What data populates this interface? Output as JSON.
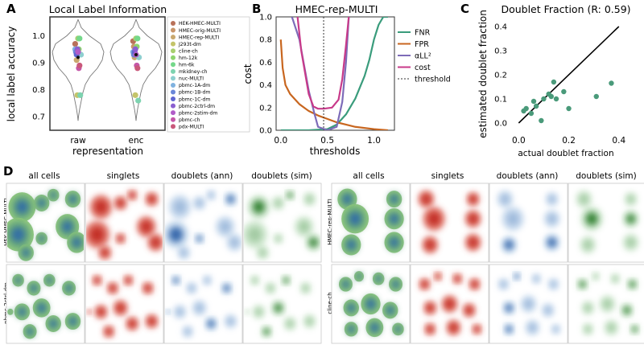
{
  "panel_letters": {
    "a": "A",
    "b": "B",
    "c": "C",
    "d": "D"
  },
  "chart_data": [
    {
      "id": "A",
      "type": "violin",
      "title": "Local Label Information",
      "xlabel": "representation",
      "ylabel": "local label accuracy",
      "categories": [
        "raw",
        "enc"
      ],
      "ylim": [
        0.65,
        1.07
      ],
      "yticks": [
        "0.7",
        "0.8",
        "0.9",
        "1.0"
      ],
      "legend": [
        {
          "label": "HEK-HMEC-MULTI",
          "color": "#b8715a",
          "raw": 0.97,
          "enc": 0.98
        },
        {
          "label": "HMEC-orig-MULTI",
          "color": "#c9966b",
          "raw": 0.95,
          "enc": 0.96
        },
        {
          "label": "HMEC-rep-MULTI",
          "color": "#c9a86e",
          "raw": 0.91,
          "enc": 0.92
        },
        {
          "label": "J293t-dm",
          "color": "#c4c46a",
          "raw": 0.78,
          "enc": 0.78
        },
        {
          "label": "cline-ch",
          "color": "#a8cf6f",
          "raw": 0.99,
          "enc": 0.99
        },
        {
          "label": "hm-12k",
          "color": "#8ed46f",
          "raw": 0.95,
          "enc": 0.96
        },
        {
          "label": "hm-6k",
          "color": "#74d88a",
          "raw": 0.99,
          "enc": 0.99
        },
        {
          "label": "mkidney-ch",
          "color": "#7dd3b0",
          "raw": 0.78,
          "enc": 0.76
        },
        {
          "label": "nuc-MULTI",
          "color": "#8ecfd0",
          "raw": 0.93,
          "enc": 0.92
        },
        {
          "label": "pbmc-1A-dm",
          "color": "#7fb2e0",
          "raw": 0.95,
          "enc": 0.94
        },
        {
          "label": "pbmc-1B-dm",
          "color": "#6a87d8",
          "raw": 0.94,
          "enc": 0.93
        },
        {
          "label": "pbmc-1C-dm",
          "color": "#5f66d2",
          "raw": 0.93,
          "enc": 0.94
        },
        {
          "label": "pbmc-2ctrl-dm",
          "color": "#8a5fd0",
          "raw": 0.95,
          "enc": 0.95
        },
        {
          "label": "pbmc-2stim-dm",
          "color": "#b15cc8",
          "raw": 0.94,
          "enc": 0.93
        },
        {
          "label": "pbmc-ch",
          "color": "#c557a8",
          "raw": 0.88,
          "enc": 0.89
        },
        {
          "label": "pdx-MULTI",
          "color": "#c9587a",
          "raw": 0.89,
          "enc": 0.88
        }
      ],
      "mean_marker": {
        "raw": 0.92,
        "enc": 0.93
      }
    },
    {
      "id": "B",
      "type": "line",
      "title": "HMEC-rep-MULTI",
      "xlabel": "thresholds",
      "ylabel": "cost",
      "xlim": [
        -0.05,
        1.22
      ],
      "ylim": [
        0,
        1.0
      ],
      "xticks": [
        "0.0",
        "0.5",
        "1.0"
      ],
      "yticks": [
        "0.0",
        "0.2",
        "0.4",
        "0.6",
        "0.8",
        "1.0"
      ],
      "threshold": 0.46,
      "series": [
        {
          "name": "FNR",
          "color": "#3a9c7c",
          "x": [
            0.0,
            0.3,
            0.5,
            0.6,
            0.7,
            0.8,
            0.9,
            0.95,
            1.0,
            1.05,
            1.1,
            1.15
          ],
          "y": [
            0.0,
            0.0,
            0.01,
            0.05,
            0.14,
            0.28,
            0.48,
            0.62,
            0.8,
            0.93,
            1.0,
            1.0
          ]
        },
        {
          "name": "FPR",
          "color": "#c8661f",
          "x": [
            0.0,
            0.02,
            0.05,
            0.1,
            0.2,
            0.3,
            0.4,
            0.5,
            0.6,
            0.7,
            0.8,
            1.0,
            1.15
          ],
          "y": [
            0.8,
            0.55,
            0.4,
            0.32,
            0.23,
            0.17,
            0.13,
            0.1,
            0.07,
            0.05,
            0.03,
            0.01,
            0.0
          ]
        },
        {
          "name": "αLL²",
          "color": "#7d6bb8",
          "x": [
            0.12,
            0.2,
            0.3,
            0.36,
            0.4,
            0.5,
            0.6,
            0.66,
            0.7,
            0.73
          ],
          "y": [
            1.0,
            0.8,
            0.35,
            0.15,
            0.03,
            0.0,
            0.03,
            0.25,
            0.6,
            1.0
          ]
        },
        {
          "name": "cost",
          "color": "#c83a8a",
          "x": [
            0.18,
            0.22,
            0.3,
            0.35,
            0.4,
            0.46,
            0.55,
            0.62,
            0.66,
            0.7,
            0.73
          ],
          "y": [
            1.0,
            0.7,
            0.32,
            0.21,
            0.19,
            0.19,
            0.2,
            0.27,
            0.45,
            0.75,
            1.0
          ]
        }
      ],
      "legend": [
        "FNR",
        "FPR",
        "αLL²",
        "cost",
        "threshold"
      ]
    },
    {
      "id": "C",
      "type": "scatter",
      "title": "Doublet Fraction (R: 0.59)",
      "xlabel": "actual doublet fraction",
      "ylabel": "estimated doublet fraction",
      "xlim": [
        -0.03,
        0.42
      ],
      "ylim": [
        -0.03,
        0.44
      ],
      "xticks": [
        "0.0",
        "0.2",
        "0.4"
      ],
      "yticks": [
        "0.0",
        "0.1",
        "0.2",
        "0.3",
        "0.4"
      ],
      "color": "#4a9a7a",
      "x": [
        0.02,
        0.03,
        0.05,
        0.06,
        0.07,
        0.09,
        0.1,
        0.12,
        0.13,
        0.14,
        0.15,
        0.18,
        0.2,
        0.31,
        0.37
      ],
      "y": [
        0.05,
        0.06,
        0.04,
        0.09,
        0.07,
        0.01,
        0.1,
        0.12,
        0.11,
        0.17,
        0.1,
        0.13,
        0.06,
        0.11,
        0.165
      ],
      "identity_line": true
    },
    {
      "id": "D",
      "type": "density-grid",
      "column_headers": [
        "all cells",
        "singlets",
        "doublets (ann)",
        "doublets (sim)"
      ],
      "datasets": [
        {
          "label": "HEK-HMEC-MULTI",
          "side": "left",
          "row": 0
        },
        {
          "label": "pbmc-2ctrl-dm",
          "side": "left",
          "row": 1
        },
        {
          "label": "HMEC-rep-MULTI",
          "side": "right",
          "row": 0
        },
        {
          "label": "cline-ch",
          "side": "right",
          "row": 1
        }
      ]
    }
  ]
}
